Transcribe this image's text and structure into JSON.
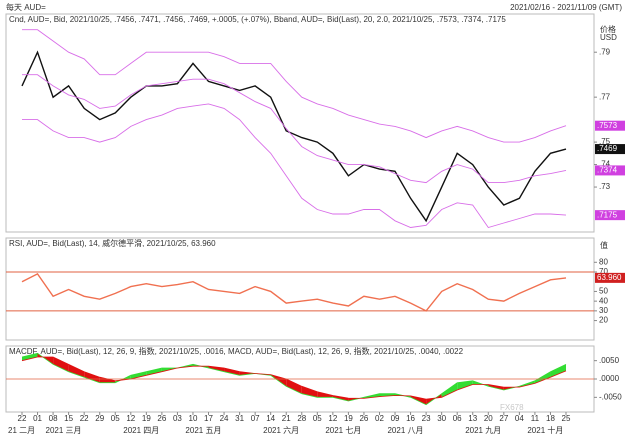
{
  "header": {
    "title": "每天 AUD=",
    "range": "2021/02/16 - 2021/11/09 (GMT)",
    "price_unit_1": "价格",
    "price_unit_2": "USD"
  },
  "watermark": "FX678",
  "x_axis": {
    "days": [
      "22",
      "01",
      "08",
      "15",
      "22",
      "29",
      "05",
      "12",
      "19",
      "26",
      "03",
      "10",
      "17",
      "24",
      "31",
      "07",
      "14",
      "21",
      "28",
      "05",
      "12",
      "19",
      "26",
      "02",
      "09",
      "16",
      "23",
      "30",
      "06",
      "13",
      "20",
      "27",
      "04",
      "11",
      "18",
      "25"
    ],
    "months": [
      "21 二月",
      "2021 三月",
      null,
      null,
      null,
      null,
      "2021 四月",
      null,
      null,
      null,
      "2021 五月",
      null,
      null,
      null,
      null,
      "2021 六月",
      null,
      null,
      null,
      "2021 七月",
      null,
      null,
      null,
      "2021 八月",
      null,
      null,
      null,
      null,
      "2021 九月",
      null,
      null,
      null,
      "2021 十月",
      null,
      null,
      null
    ]
  },
  "chart_data": [
    {
      "type": "line",
      "legend": "Cnd, AUD=, Bid, 2021/10/25, .7456, .7471, .7456, .7469, +.0005, (+.07%), Bband, AUD=, Bid(Last), 20, 2.0, 2021/10/25, .7573, .7374, .7175",
      "ylim": [
        0.71,
        0.807
      ],
      "yticks": [
        {
          "value": 0.79,
          "label": ".79"
        },
        {
          "value": 0.77,
          "label": ".77"
        },
        {
          "value": 0.75,
          "label": ".75"
        },
        {
          "value": 0.74,
          "label": ".74"
        },
        {
          "value": 0.73,
          "label": ".73"
        }
      ],
      "series": [
        {
          "name": "Cnd",
          "color": "#111111",
          "values": [
            0.775,
            0.79,
            0.77,
            0.775,
            0.765,
            0.76,
            0.763,
            0.77,
            0.775,
            0.775,
            0.776,
            0.785,
            0.777,
            0.775,
            0.773,
            0.775,
            0.77,
            0.755,
            0.752,
            0.75,
            0.745,
            0.735,
            0.74,
            0.738,
            0.737,
            0.725,
            0.715,
            0.73,
            0.745,
            0.74,
            0.73,
            0.722,
            0.725,
            0.737,
            0.745,
            0.7469
          ]
        },
        {
          "name": "Bband upper",
          "color": "#d86ee8",
          "values": [
            0.8,
            0.8,
            0.795,
            0.79,
            0.787,
            0.78,
            0.78,
            0.785,
            0.79,
            0.79,
            0.79,
            0.79,
            0.79,
            0.788,
            0.785,
            0.785,
            0.785,
            0.777,
            0.77,
            0.767,
            0.765,
            0.762,
            0.76,
            0.758,
            0.757,
            0.755,
            0.752,
            0.755,
            0.757,
            0.755,
            0.752,
            0.75,
            0.75,
            0.752,
            0.755,
            0.7573
          ]
        },
        {
          "name": "Bband mid",
          "color": "#d86ee8",
          "values": [
            0.78,
            0.78,
            0.775,
            0.771,
            0.769,
            0.765,
            0.766,
            0.771,
            0.775,
            0.776,
            0.777,
            0.778,
            0.778,
            0.776,
            0.772,
            0.768,
            0.765,
            0.756,
            0.748,
            0.744,
            0.742,
            0.74,
            0.74,
            0.739,
            0.736,
            0.733,
            0.732,
            0.737,
            0.74,
            0.738,
            0.732,
            0.732,
            0.733,
            0.735,
            0.736,
            0.7374
          ]
        },
        {
          "name": "Bband lower",
          "color": "#d86ee8",
          "values": [
            0.76,
            0.76,
            0.755,
            0.752,
            0.752,
            0.75,
            0.752,
            0.757,
            0.76,
            0.762,
            0.765,
            0.766,
            0.767,
            0.765,
            0.76,
            0.752,
            0.745,
            0.735,
            0.725,
            0.72,
            0.718,
            0.718,
            0.72,
            0.72,
            0.715,
            0.712,
            0.713,
            0.72,
            0.723,
            0.722,
            0.712,
            0.714,
            0.716,
            0.718,
            0.718,
            0.7175
          ]
        }
      ],
      "markers": [
        {
          "value": 0.7573,
          "label": ".7573",
          "color": "#d040e0"
        },
        {
          "value": 0.7469,
          "label": ".7469",
          "color": "#111111"
        },
        {
          "value": 0.7374,
          "label": ".7374",
          "color": "#d040e0"
        },
        {
          "value": 0.7175,
          "label": ".7175",
          "color": "#d040e0"
        }
      ]
    },
    {
      "type": "line",
      "legend": "RSI, AUD=, Bid(Last), 14, 威尔德平滑, 2021/10/25, 63.960",
      "unit": "值",
      "ylim": [
        0,
        105
      ],
      "yticks": [
        80,
        70,
        50,
        40,
        30,
        20
      ],
      "levels": [
        70,
        30
      ],
      "series": [
        {
          "name": "RSI",
          "color": "#f07050",
          "values": [
            60,
            68,
            45,
            52,
            45,
            42,
            48,
            55,
            58,
            55,
            57,
            60,
            52,
            50,
            48,
            55,
            50,
            38,
            40,
            42,
            38,
            35,
            45,
            42,
            45,
            38,
            30,
            50,
            58,
            52,
            42,
            40,
            48,
            55,
            62,
            63.96
          ]
        }
      ],
      "markers": [
        {
          "value": 63.96,
          "label": "63.960",
          "color": "#d02020"
        }
      ]
    },
    {
      "type": "area",
      "legend": "MACDF, AUD=, Bid(Last), 12, 26, 9, 指数, 2021/10/25, .0016, MACD, AUD=, Bid(Last), 12, 26, 9, 指数, 2021/10/25, .0040, .0022",
      "ylim": [
        -0.009,
        0.009
      ],
      "yticks": [
        {
          "value": 0.005,
          "label": ".0050"
        },
        {
          "value": 0,
          "label": ".0000"
        },
        {
          "value": -0.005,
          "label": "-.0050"
        }
      ],
      "series": [
        {
          "name": "MACD",
          "color": "#33dd33",
          "values": [
            0.006,
            0.007,
            0.004,
            0.002,
            0.0005,
            -0.001,
            -0.001,
            0.001,
            0.002,
            0.003,
            0.003,
            0.004,
            0.003,
            0.002,
            0.001,
            0.0015,
            0.001,
            -0.002,
            -0.004,
            -0.005,
            -0.005,
            -0.006,
            -0.005,
            -0.004,
            -0.004,
            -0.005,
            -0.007,
            -0.004,
            -0.001,
            -0.0005,
            -0.002,
            -0.003,
            -0.002,
            -0.0005,
            0.002,
            0.004
          ]
        },
        {
          "name": "Signal",
          "color": "#e01010",
          "values": [
            0.005,
            0.006,
            0.006,
            0.004,
            0.002,
            0.0005,
            -0.0005,
            0,
            0.001,
            0.002,
            0.003,
            0.0035,
            0.0035,
            0.003,
            0.002,
            0.0015,
            0.0012,
            0,
            -0.002,
            -0.0035,
            -0.0045,
            -0.0052,
            -0.0053,
            -0.0048,
            -0.0045,
            -0.0046,
            -0.0055,
            -0.005,
            -0.003,
            -0.0015,
            -0.0015,
            -0.0022,
            -0.0022,
            -0.0012,
            0.0005,
            0.0022
          ]
        }
      ]
    }
  ]
}
